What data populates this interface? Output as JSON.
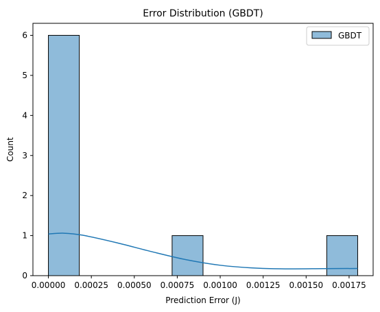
{
  "chart_data": {
    "type": "bar",
    "title": "Error Distribution (GBDT)",
    "xlabel": "Prediction Error (J)",
    "ylabel": "Count",
    "xlim": [
      -9e-05,
      0.00189
    ],
    "ylim": [
      0,
      6.3
    ],
    "xticks": [
      0.0,
      0.00025,
      0.0005,
      0.00075,
      0.001,
      0.00125,
      0.0015,
      0.00175
    ],
    "xtick_labels": [
      "0.00000",
      "0.00025",
      "0.00050",
      "0.00075",
      "0.00100",
      "0.00125",
      "0.00150",
      "0.00175"
    ],
    "yticks": [
      0,
      1,
      2,
      3,
      4,
      5,
      6
    ],
    "ytick_labels": [
      "0",
      "1",
      "2",
      "3",
      "4",
      "5",
      "6"
    ],
    "bin_start": 0.0,
    "bin_width": 0.00018,
    "counts": [
      6,
      0,
      0,
      0,
      1,
      0,
      0,
      0,
      0,
      1
    ],
    "kde": {
      "x": [
        0.0,
        9e-05,
        0.0002,
        0.0004,
        0.0006,
        0.0008,
        0.001,
        0.0012,
        0.0014,
        0.0016,
        0.0018
      ],
      "y": [
        1.04,
        1.06,
        1.01,
        0.82,
        0.6,
        0.4,
        0.26,
        0.19,
        0.17,
        0.175,
        0.18
      ]
    },
    "legend": {
      "position": "top-right",
      "entries": [
        "GBDT"
      ]
    },
    "colors": {
      "bar_fill": "#8fbbda",
      "bar_edge": "#000000",
      "kde_line": "#1f77b4",
      "legend_border": "#cccccc"
    }
  }
}
